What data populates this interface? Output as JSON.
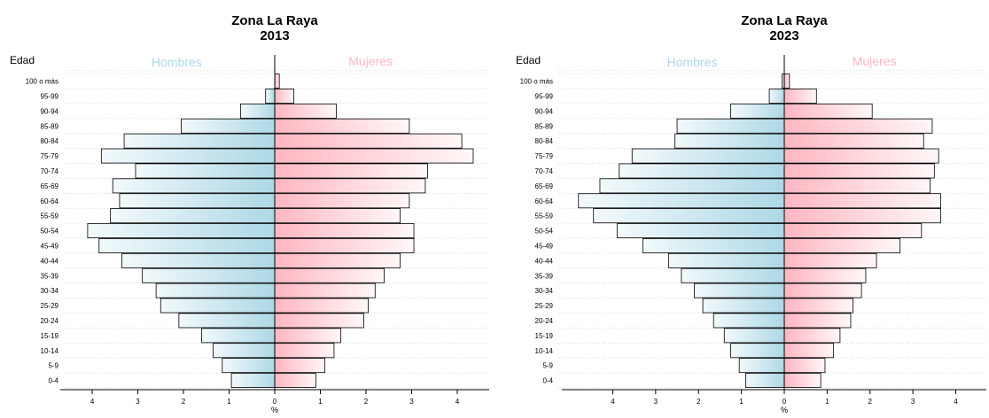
{
  "colors": {
    "male_light": "#f2f9fb",
    "male_dark": "#add8e6",
    "female_dark": "#ffb6c1",
    "female_light": "#fff7f8",
    "male_label": "#add8e6",
    "female_label": "#ffb6c1",
    "bar_stroke": "#000000",
    "grid": "#d9d9d9"
  },
  "chart_data": [
    {
      "type": "bar",
      "orientation": "horizontal",
      "title": "Zona La Raya",
      "subtitle": "2013",
      "ylabel": "Edad",
      "xlabel": "%",
      "male_label": "Hombres",
      "female_label": "Mujeres",
      "categories": [
        "0-4",
        "5-9",
        "10-14",
        "15-19",
        "20-24",
        "25-29",
        "30-34",
        "35-39",
        "40-44",
        "45-49",
        "50-54",
        "55-59",
        "60-64",
        "65-69",
        "70-74",
        "75-79",
        "80-84",
        "85-89",
        "90-94",
        "95-99",
        "100 o más"
      ],
      "xlim": [
        -4.7,
        4.7
      ],
      "xticks": [
        -4,
        -3,
        -2,
        -1,
        0,
        1,
        2,
        3,
        4
      ],
      "xtick_labels": [
        "4",
        "3",
        "2",
        "1",
        "0",
        "1",
        "2",
        "3",
        "4"
      ],
      "series": [
        {
          "name": "Hombres",
          "values": [
            0.95,
            1.15,
            1.35,
            1.6,
            2.1,
            2.5,
            2.6,
            2.9,
            3.35,
            3.85,
            4.1,
            3.6,
            3.4,
            3.55,
            3.05,
            3.8,
            3.3,
            2.05,
            0.75,
            0.2,
            0.0
          ]
        },
        {
          "name": "Mujeres",
          "values": [
            0.9,
            1.1,
            1.3,
            1.45,
            1.95,
            2.05,
            2.2,
            2.4,
            2.75,
            3.05,
            3.05,
            2.75,
            2.95,
            3.3,
            3.35,
            4.35,
            4.1,
            2.95,
            1.35,
            0.42,
            0.1
          ]
        }
      ],
      "grid": true
    },
    {
      "type": "bar",
      "orientation": "horizontal",
      "title": "Zona La Raya",
      "subtitle": "2023",
      "ylabel": "Edad",
      "xlabel": "%",
      "male_label": "Hombres",
      "female_label": "Mujeres",
      "categories": [
        "0-4",
        "5-9",
        "10-14",
        "15-19",
        "20-24",
        "25-29",
        "30-34",
        "35-39",
        "40-44",
        "45-49",
        "50-54",
        "55-59",
        "60-64",
        "65-69",
        "70-74",
        "75-79",
        "80-84",
        "85-89",
        "90-94",
        "95-99",
        "100 o más"
      ],
      "xlim": [
        -4.95,
        4.95
      ],
      "xticks": [
        -4,
        -3,
        -2,
        -1,
        0,
        1,
        2,
        3,
        4
      ],
      "xtick_labels": [
        "4",
        "3",
        "2",
        "1",
        "0",
        "1",
        "2",
        "3",
        "4"
      ],
      "series": [
        {
          "name": "Hombres",
          "values": [
            0.9,
            1.05,
            1.25,
            1.4,
            1.65,
            1.9,
            2.1,
            2.4,
            2.7,
            3.3,
            3.9,
            4.45,
            4.8,
            4.3,
            3.85,
            3.55,
            2.55,
            2.5,
            1.25,
            0.35,
            0.05
          ]
        },
        {
          "name": "Mujeres",
          "values": [
            0.85,
            0.95,
            1.15,
            1.3,
            1.55,
            1.6,
            1.8,
            1.9,
            2.15,
            2.7,
            3.2,
            3.65,
            3.65,
            3.4,
            3.5,
            3.6,
            3.25,
            3.45,
            2.05,
            0.75,
            0.12
          ]
        }
      ],
      "grid": true
    }
  ]
}
